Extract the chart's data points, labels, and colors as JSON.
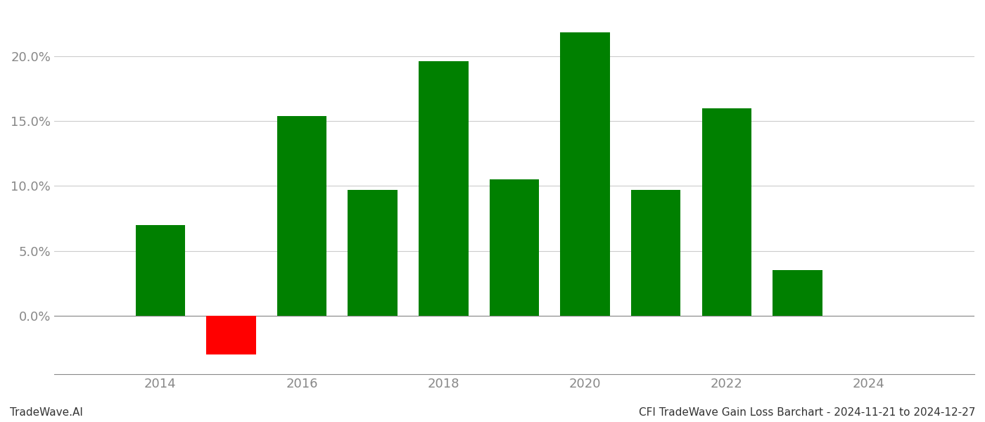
{
  "years": [
    2014,
    2015,
    2016,
    2017,
    2018,
    2019,
    2020,
    2021,
    2022,
    2023
  ],
  "values": [
    0.07,
    -0.03,
    0.154,
    0.097,
    0.196,
    0.105,
    0.218,
    0.097,
    0.16,
    0.035
  ],
  "colors": [
    "#008000",
    "#ff0000",
    "#008000",
    "#008000",
    "#008000",
    "#008000",
    "#008000",
    "#008000",
    "#008000",
    "#008000"
  ],
  "ylim": [
    -0.045,
    0.235
  ],
  "yticks": [
    0.0,
    0.05,
    0.1,
    0.15,
    0.2
  ],
  "xticks": [
    2014,
    2016,
    2018,
    2020,
    2022,
    2024
  ],
  "xlim": [
    2012.5,
    2025.5
  ],
  "grid_color": "#cccccc",
  "bar_width": 0.7,
  "background_color": "#ffffff",
  "footer_left": "TradeWave.AI",
  "footer_right": "CFI TradeWave Gain Loss Barchart - 2024-11-21 to 2024-12-27",
  "footer_fontsize": 11,
  "tick_fontsize": 13,
  "axis_label_color": "#888888"
}
